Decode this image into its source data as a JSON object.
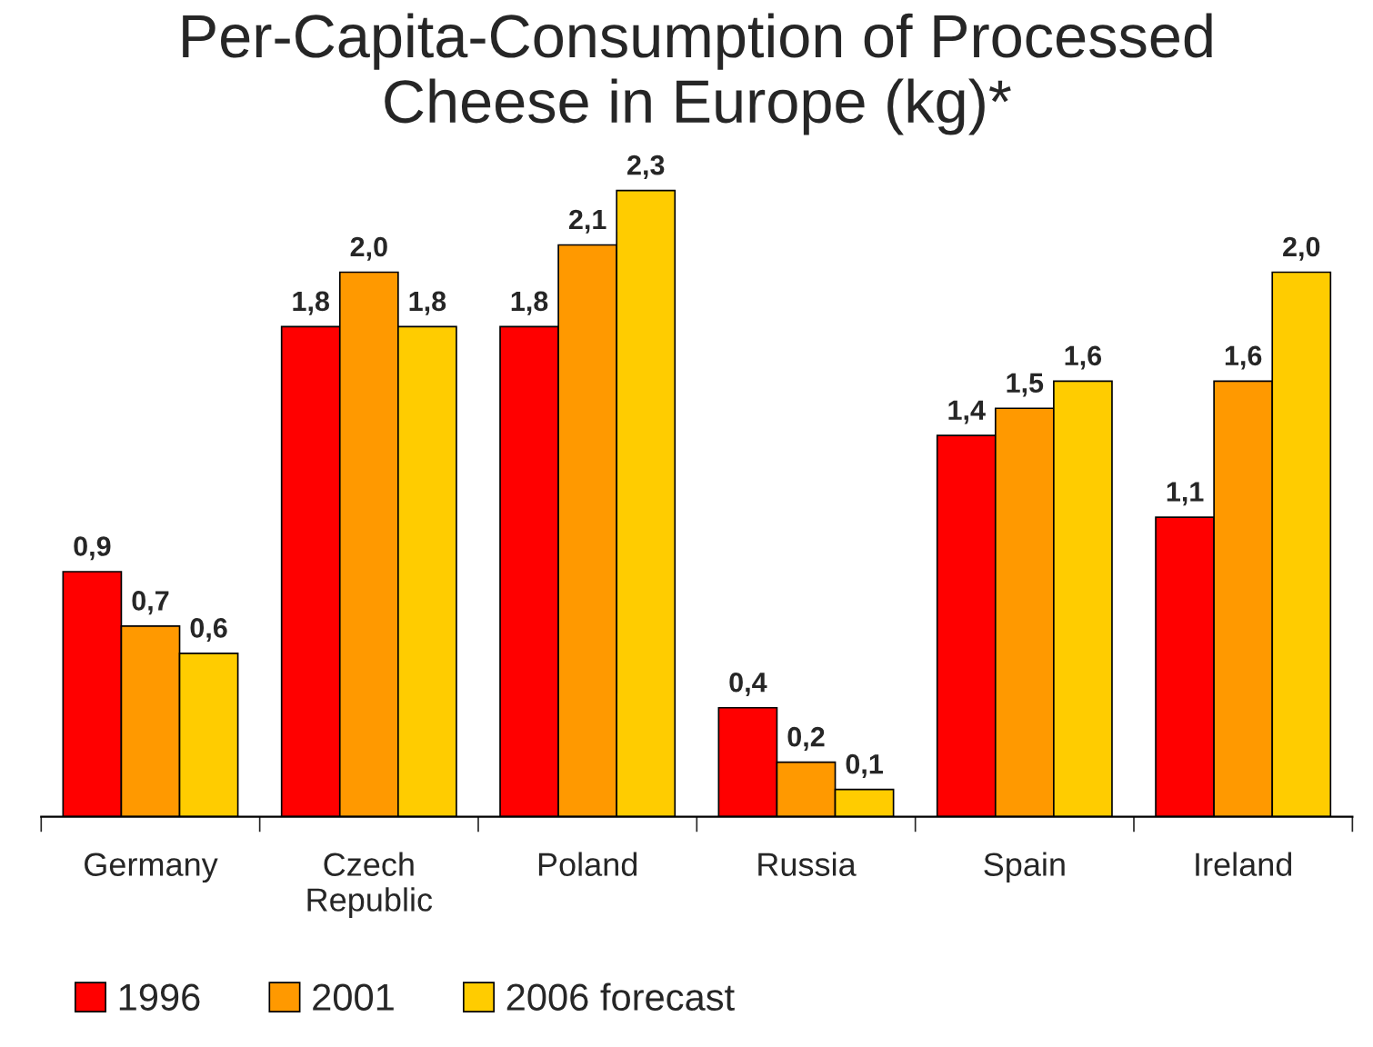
{
  "chart_data": {
    "type": "bar",
    "title": "Per-Capita-Consumption of Processed\nCheese in Europe (kg)*",
    "categories": [
      "Germany",
      "Czech\nRepublic",
      "Poland",
      "Russia",
      "Spain",
      "Ireland"
    ],
    "series": [
      {
        "name": "1996",
        "color": "#ff0000",
        "values": [
          0.9,
          1.8,
          1.8,
          0.4,
          1.4,
          1.1
        ],
        "value_labels": [
          "0,9",
          "1,8",
          "1,8",
          "0,4",
          "1,4",
          "1,1"
        ]
      },
      {
        "name": "2001",
        "color": "#ff9900",
        "values": [
          0.7,
          2.0,
          2.1,
          0.2,
          1.5,
          1.6
        ],
        "value_labels": [
          "0,7",
          "2,0",
          "2,1",
          "0,2",
          "1,5",
          "1,6"
        ]
      },
      {
        "name": "2006 forecast",
        "color": "#ffcc00",
        "values": [
          0.6,
          1.8,
          2.3,
          0.1,
          1.6,
          2.0
        ],
        "value_labels": [
          "0,6",
          "1,8",
          "2,3",
          "0,1",
          "1,6",
          "2,0"
        ]
      }
    ],
    "legend": "bottom left",
    "grid": false
  }
}
